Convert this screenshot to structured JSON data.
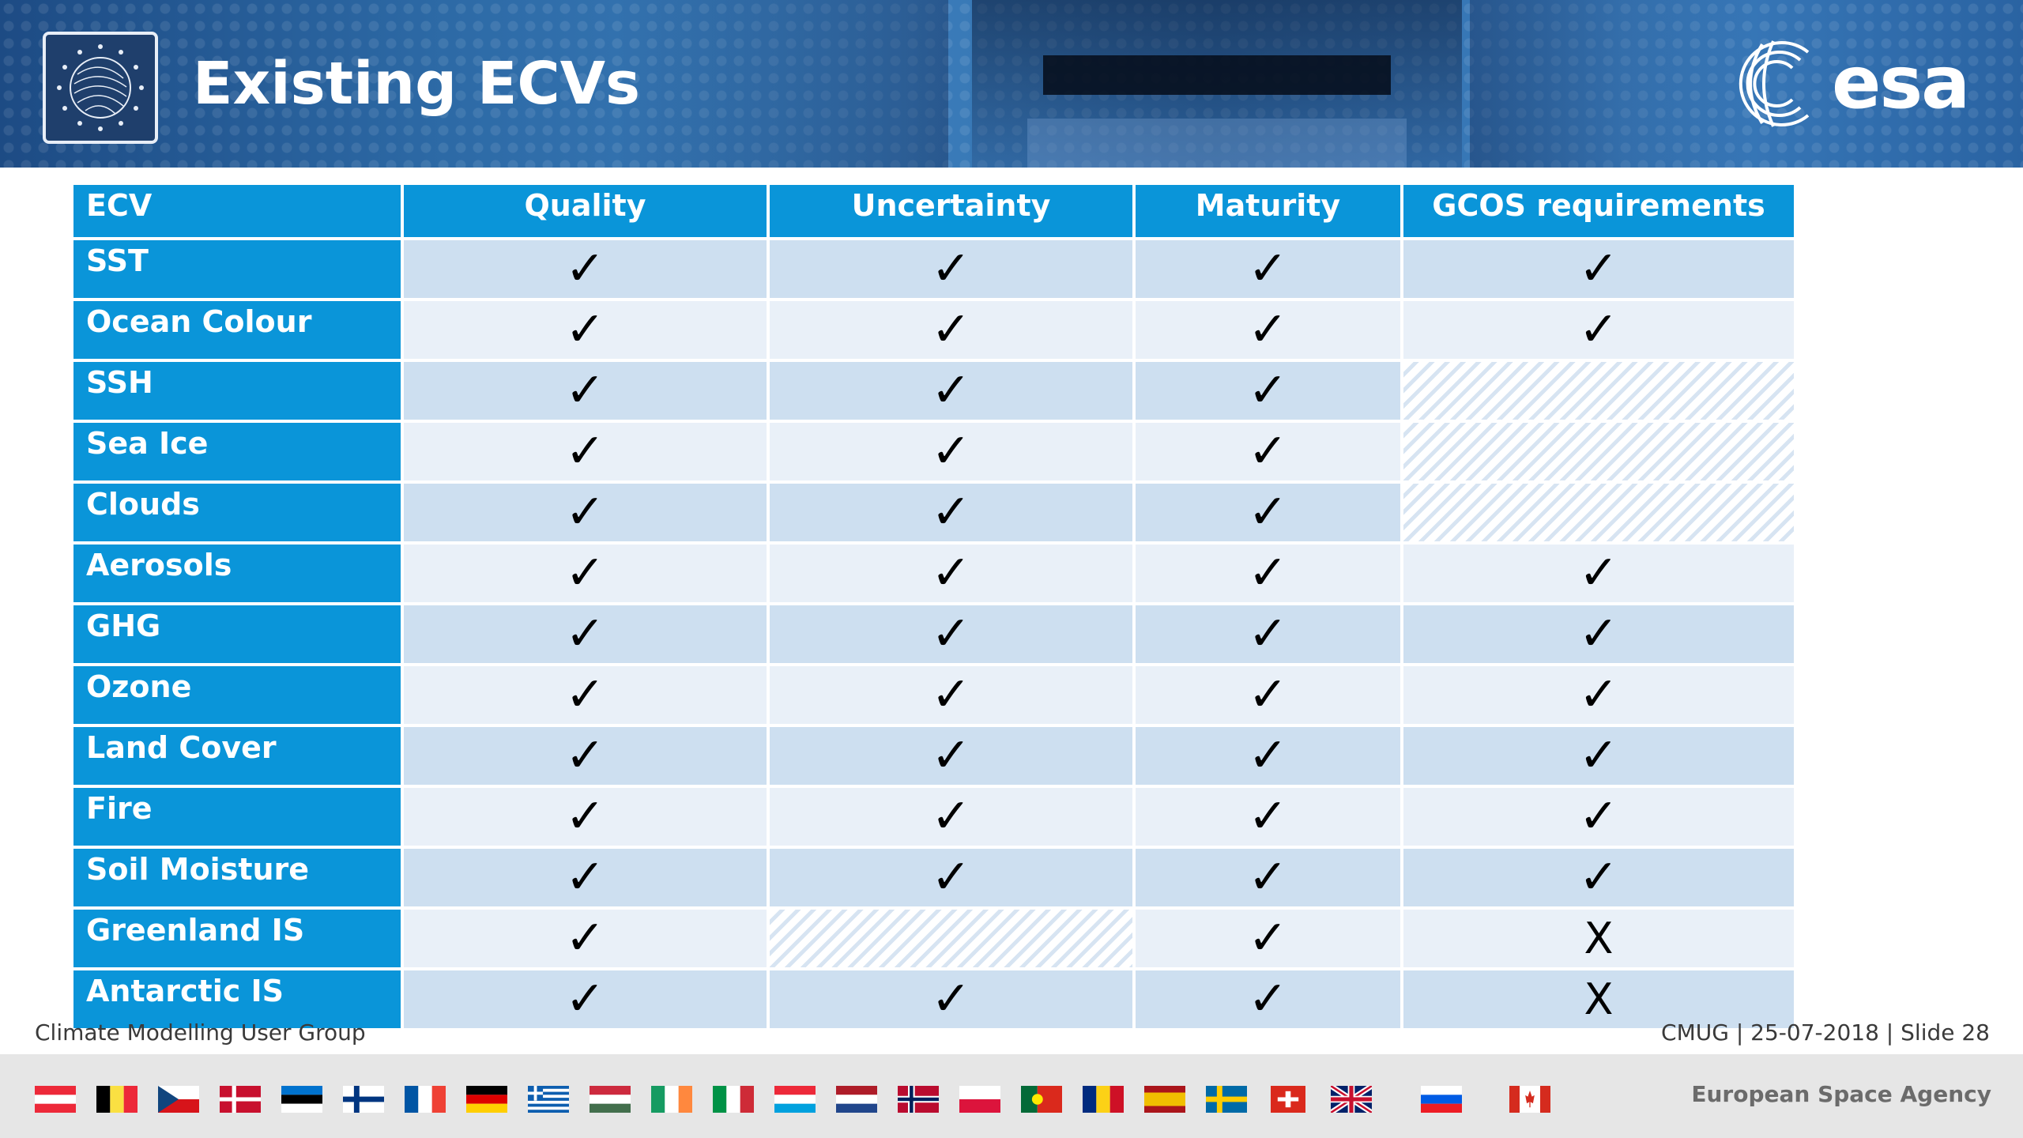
{
  "slide": {
    "title": "Existing ECVs"
  },
  "brand": {
    "logo_text": "esa",
    "agency_name": "European Space Agency"
  },
  "table": {
    "headers": [
      "ECV",
      "Quality",
      "Uncertainty",
      "Maturity",
      "GCOS requirements"
    ],
    "rows": [
      {
        "ecv": "SST",
        "quality": "✓",
        "uncertainty": "✓",
        "maturity": "✓",
        "gcos": "✓"
      },
      {
        "ecv": "Ocean Colour",
        "quality": "✓",
        "uncertainty": "✓",
        "maturity": "✓",
        "gcos": "✓"
      },
      {
        "ecv": "SSH",
        "quality": "✓",
        "uncertainty": "✓",
        "maturity": "✓",
        "gcos": ""
      },
      {
        "ecv": "Sea Ice",
        "quality": "✓",
        "uncertainty": "✓",
        "maturity": "✓",
        "gcos": ""
      },
      {
        "ecv": "Clouds",
        "quality": "✓",
        "uncertainty": "✓",
        "maturity": "✓",
        "gcos": ""
      },
      {
        "ecv": "Aerosols",
        "quality": "✓",
        "uncertainty": "✓",
        "maturity": "✓",
        "gcos": "✓"
      },
      {
        "ecv": "GHG",
        "quality": "✓",
        "uncertainty": "✓",
        "maturity": "✓",
        "gcos": "✓"
      },
      {
        "ecv": "Ozone",
        "quality": "✓",
        "uncertainty": "✓",
        "maturity": "✓",
        "gcos": "✓"
      },
      {
        "ecv": "Land Cover",
        "quality": "✓",
        "uncertainty": "✓",
        "maturity": "✓",
        "gcos": "✓"
      },
      {
        "ecv": "Fire",
        "quality": "✓",
        "uncertainty": "✓",
        "maturity": "✓",
        "gcos": "✓"
      },
      {
        "ecv": "Soil Moisture",
        "quality": "✓",
        "uncertainty": "✓",
        "maturity": "✓",
        "gcos": "✓"
      },
      {
        "ecv": "Greenland IS",
        "quality": "✓",
        "uncertainty": "",
        "maturity": "✓",
        "gcos": "X"
      },
      {
        "ecv": "Antarctic IS",
        "quality": "✓",
        "uncertainty": "✓",
        "maturity": "✓",
        "gcos": "X"
      }
    ]
  },
  "footer": {
    "left": "Climate Modelling User Group",
    "right": "CMUG | 25-07-2018 | Slide  28"
  },
  "flags": [
    "Austria",
    "Belgium",
    "Czech Republic",
    "Denmark",
    "Estonia",
    "Finland",
    "France",
    "Germany",
    "Greece",
    "Hungary",
    "Ireland",
    "Italy",
    "Luxembourg",
    "Netherlands",
    "Norway",
    "Poland",
    "Portugal",
    "Romania",
    "Spain",
    "Sweden",
    "Switzerland",
    "United Kingdom",
    "Slovenia",
    "Canada"
  ],
  "colors": {
    "header_blue": "#0a95d9",
    "row_dark": "#cddff0",
    "row_light": "#e9f0f8",
    "banner_blue": "#2d6aa6"
  }
}
